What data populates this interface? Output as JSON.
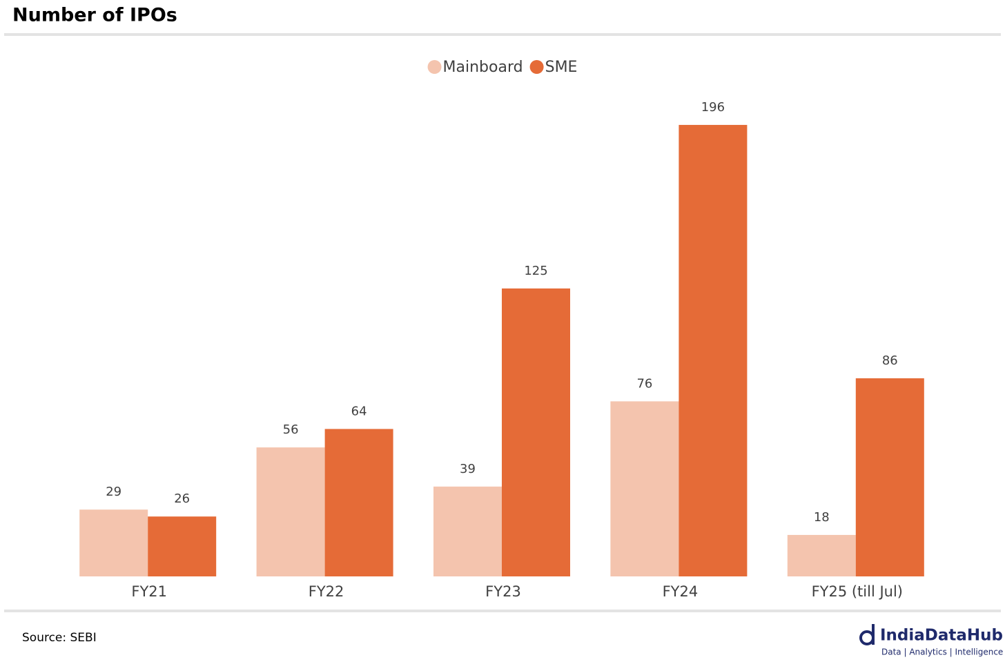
{
  "chart_data": {
    "type": "bar",
    "title": "Number of IPOs",
    "categories": [
      "FY21",
      "FY22",
      "FY23",
      "FY24",
      "FY25 (till Jul)"
    ],
    "series": [
      {
        "name": "Mainboard",
        "color": "#f4c4ae",
        "values": [
          29,
          56,
          39,
          76,
          18
        ]
      },
      {
        "name": "SME",
        "color": "#e56b37",
        "values": [
          26,
          64,
          125,
          196,
          86
        ]
      }
    ],
    "source": "Source: SEBI",
    "brand": {
      "name": "IndiaDataHub",
      "tagline": "Data | Analytics | Intelligence"
    }
  }
}
